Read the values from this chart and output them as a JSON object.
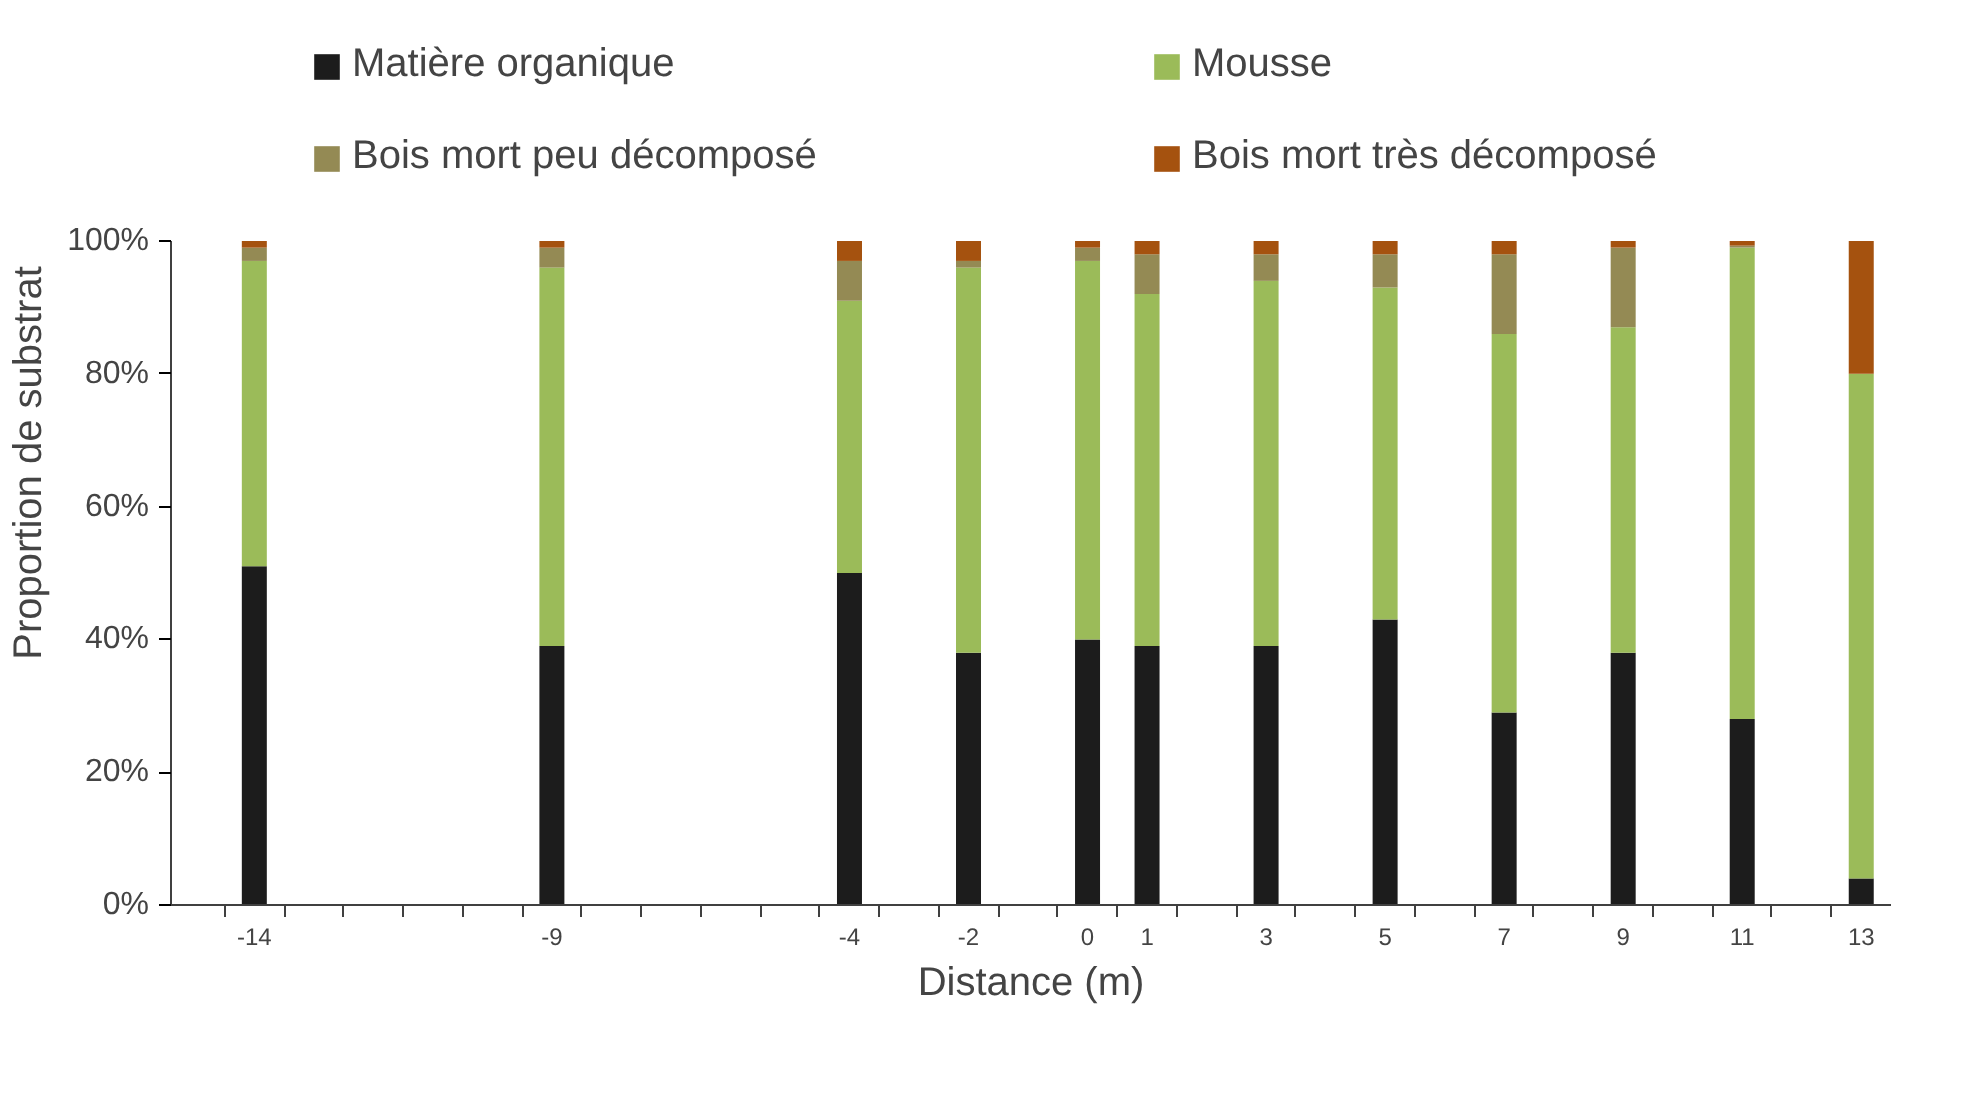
{
  "chart_data": {
    "type": "bar",
    "stacked": true,
    "xlabel": "Distance (m)",
    "ylabel": "Proportion de substrat",
    "x": [
      -14,
      -9,
      -4,
      -2,
      0,
      1,
      3,
      5,
      7,
      9,
      11,
      13
    ],
    "series": [
      {
        "name": "Matière organique",
        "color": "#1c1c1c",
        "values": [
          51,
          39,
          50,
          38,
          40,
          39,
          39,
          43,
          29,
          38,
          28,
          4
        ]
      },
      {
        "name": "Mousse",
        "color": "#9bbb59",
        "values": [
          46,
          57,
          41,
          58,
          57,
          53,
          55,
          50,
          57,
          49,
          71,
          76
        ]
      },
      {
        "name": "Bois mort peu décomposé",
        "color": "#948a54",
        "values": [
          2,
          3,
          6,
          1,
          2,
          6,
          4,
          5,
          12,
          12,
          0.3,
          0
        ]
      },
      {
        "name": "Bois mort très décomposé",
        "color": "#a5520f",
        "values": [
          1,
          1,
          3,
          3,
          1,
          2,
          2,
          2,
          2,
          1,
          0.7,
          20
        ]
      }
    ],
    "xlim": [
      -15.4,
      13.5
    ],
    "xticks": [
      {
        "value": -14,
        "label": "-14"
      },
      {
        "value": -9,
        "label": "-9"
      },
      {
        "value": -4,
        "label": "-4"
      },
      {
        "value": -2,
        "label": "-2"
      },
      {
        "value": 0,
        "label": "0"
      },
      {
        "value": 1,
        "label": "1"
      },
      {
        "value": 3,
        "label": "3"
      },
      {
        "value": 5,
        "label": "5"
      },
      {
        "value": 7,
        "label": "7"
      },
      {
        "value": 9,
        "label": "9"
      },
      {
        "value": 11,
        "label": "11"
      },
      {
        "value": 13,
        "label": "13"
      },
      {
        "value": -14.5,
        "label": null
      },
      {
        "value": -13.5,
        "label": null
      },
      {
        "value": -12.5,
        "label": null
      },
      {
        "value": -11.5,
        "label": null
      },
      {
        "value": -10.5,
        "label": null
      },
      {
        "value": -9.5,
        "label": null
      },
      {
        "value": -8.5,
        "label": null
      },
      {
        "value": -7.5,
        "label": null
      },
      {
        "value": -6.5,
        "label": null
      },
      {
        "value": -5.5,
        "label": null
      },
      {
        "value": -4.5,
        "label": null
      },
      {
        "value": -3.5,
        "label": null
      },
      {
        "value": -2.5,
        "label": null
      },
      {
        "value": -1.5,
        "label": null
      },
      {
        "value": -0.5,
        "label": null
      },
      {
        "value": 0.5,
        "label": null
      },
      {
        "value": 1.5,
        "label": null
      },
      {
        "value": 2.5,
        "label": null
      },
      {
        "value": 3.5,
        "label": null
      },
      {
        "value": 4.5,
        "label": null
      },
      {
        "value": 5.5,
        "label": null
      },
      {
        "value": 6.5,
        "label": null
      },
      {
        "value": 7.5,
        "label": null
      },
      {
        "value": 8.5,
        "label": null
      },
      {
        "value": 9.5,
        "label": null
      },
      {
        "value": 10.5,
        "label": null
      },
      {
        "value": 11.5,
        "label": null
      },
      {
        "value": 12.5,
        "label": null
      }
    ],
    "ylim": [
      0,
      100
    ],
    "yticks": [
      {
        "value": 0,
        "label": "0%"
      },
      {
        "value": 20,
        "label": "20%"
      },
      {
        "value": 40,
        "label": "40%"
      },
      {
        "value": 60,
        "label": "60%"
      },
      {
        "value": 80,
        "label": "80%"
      },
      {
        "value": 100,
        "label": "100%"
      }
    ],
    "grid": false,
    "legend": "top"
  }
}
